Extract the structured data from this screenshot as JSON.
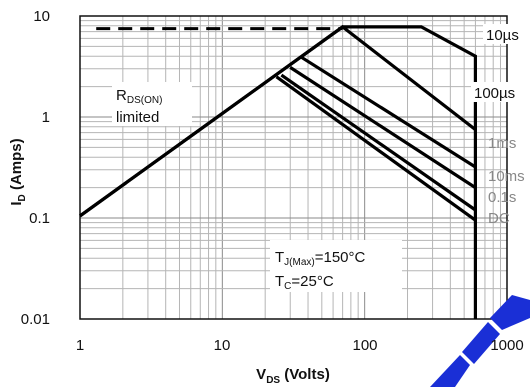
{
  "chart_data": {
    "type": "line",
    "xscale": "log",
    "yscale": "log",
    "xlim": [
      1,
      1000
    ],
    "ylim": [
      0.01,
      10
    ],
    "xticks": [
      "1",
      "10",
      "100",
      "1000"
    ],
    "yticks": [
      "10",
      "1",
      "0.1",
      "0.01"
    ],
    "xlabel": {
      "main": "V",
      "sub": "DS",
      "tail": " (Volts)"
    },
    "ylabel": {
      "main": "I",
      "sub": "D",
      "tail": " (Amps)"
    },
    "grid": true,
    "series": [
      {
        "name": "10µs",
        "x": [
          1,
          70,
          250,
          600,
          600
        ],
        "y": [
          0.105,
          7.8,
          7.8,
          4.0,
          0.01
        ]
      },
      {
        "name": "100µs",
        "x": [
          1,
          70,
          600
        ],
        "y": [
          0.105,
          7.8,
          0.75
        ]
      },
      {
        "name": "1ms",
        "x": [
          36,
          600
        ],
        "y": [
          3.9,
          0.32
        ]
      },
      {
        "name": "10ms",
        "x": [
          30,
          600
        ],
        "y": [
          3.1,
          0.2
        ]
      },
      {
        "name": "0.1s",
        "x": [
          26,
          600
        ],
        "y": [
          2.6,
          0.12
        ]
      },
      {
        "name": "DC",
        "x": [
          24,
          600
        ],
        "y": [
          2.5,
          0.095
        ]
      }
    ],
    "rds_limit_dashed": {
      "x": [
        1.3,
        70
      ],
      "y": [
        7.5,
        7.5
      ]
    },
    "annotations": {
      "rds": {
        "main": "R",
        "sub": "DS(ON)",
        "line2": "limited"
      },
      "tj": {
        "main": "T",
        "sub": "J(Max)",
        "tail": "=150°C"
      },
      "tc": {
        "main": "T",
        "sub": "C",
        "tail": "=25°C"
      }
    }
  }
}
